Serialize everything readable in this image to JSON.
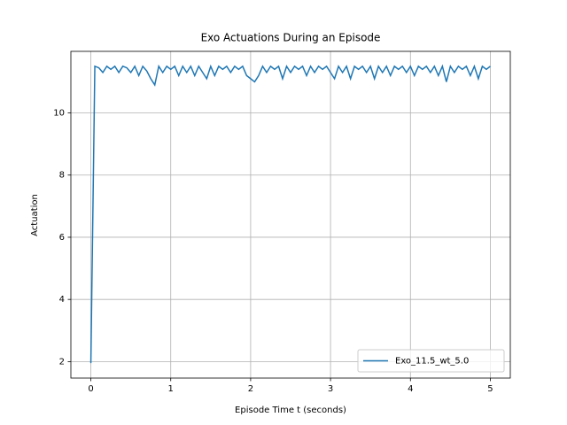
{
  "chart_data": {
    "type": "line",
    "title": "Exo Actuations During an Episode",
    "xlabel": "Episode Time t (seconds)",
    "ylabel": "Actuation",
    "x": [
      0,
      0.05,
      0.1,
      0.15,
      0.2,
      0.25,
      0.3,
      0.35,
      0.4,
      0.45,
      0.5,
      0.55,
      0.6,
      0.65,
      0.7,
      0.75,
      0.8,
      0.85,
      0.9,
      0.95,
      1,
      1.05,
      1.1,
      1.15,
      1.2,
      1.25,
      1.3,
      1.35,
      1.4,
      1.45,
      1.5,
      1.55,
      1.6,
      1.65,
      1.7,
      1.75,
      1.8,
      1.85,
      1.9,
      1.95,
      2,
      2.05,
      2.1,
      2.15,
      2.2,
      2.25,
      2.3,
      2.35,
      2.4,
      2.45,
      2.5,
      2.55,
      2.6,
      2.65,
      2.7,
      2.75,
      2.8,
      2.85,
      2.9,
      2.95,
      3,
      3.05,
      3.1,
      3.15,
      3.2,
      3.25,
      3.3,
      3.35,
      3.4,
      3.45,
      3.5,
      3.55,
      3.6,
      3.65,
      3.7,
      3.75,
      3.8,
      3.85,
      3.9,
      3.95,
      4,
      4.05,
      4.1,
      4.15,
      4.2,
      4.25,
      4.3,
      4.35,
      4.4,
      4.45,
      4.5,
      4.55,
      4.6,
      4.65,
      4.7,
      4.75,
      4.8,
      4.85,
      4.9,
      4.95,
      5
    ],
    "series": [
      {
        "name": "Exo_11.5_wt_5.0",
        "color": "#1f77b4",
        "values": [
          1.95,
          11.5,
          11.45,
          11.3,
          11.5,
          11.4,
          11.5,
          11.3,
          11.5,
          11.45,
          11.3,
          11.5,
          11.2,
          11.5,
          11.35,
          11.1,
          10.9,
          11.5,
          11.3,
          11.5,
          11.4,
          11.5,
          11.2,
          11.5,
          11.3,
          11.5,
          11.2,
          11.5,
          11.3,
          11.1,
          11.5,
          11.2,
          11.5,
          11.4,
          11.5,
          11.3,
          11.5,
          11.4,
          11.5,
          11.2,
          11.1,
          11.0,
          11.2,
          11.5,
          11.3,
          11.5,
          11.4,
          11.5,
          11.1,
          11.5,
          11.3,
          11.5,
          11.4,
          11.5,
          11.2,
          11.5,
          11.3,
          11.5,
          11.4,
          11.5,
          11.3,
          11.1,
          11.5,
          11.3,
          11.5,
          11.1,
          11.5,
          11.4,
          11.5,
          11.3,
          11.5,
          11.1,
          11.5,
          11.3,
          11.5,
          11.2,
          11.5,
          11.4,
          11.5,
          11.3,
          11.5,
          11.2,
          11.5,
          11.4,
          11.5,
          11.3,
          11.5,
          11.2,
          11.5,
          11.0,
          11.5,
          11.3,
          11.5,
          11.4,
          11.5,
          11.2,
          11.5,
          11.1,
          11.5,
          11.4,
          11.5
        ]
      }
    ],
    "xlim": [
      -0.25,
      5.25
    ],
    "ylim": [
      1.47,
      11.98
    ],
    "xticks": [
      0,
      1,
      2,
      3,
      4,
      5
    ],
    "yticks": [
      2,
      4,
      6,
      8,
      10
    ],
    "grid": true,
    "legend": "lower right"
  }
}
